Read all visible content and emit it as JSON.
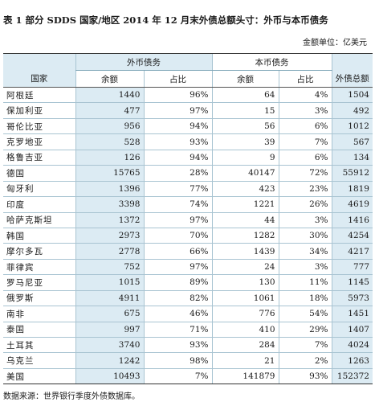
{
  "title": "表 1  部分 SDDS 国家/地区 2014 年 12 月末外债总额头寸：外币与本币债务",
  "unit": "金额单位：亿美元",
  "headers": {
    "country": "国家",
    "foreign": "外币债务",
    "local": "本币债务",
    "total": "外债总额",
    "amount": "余额",
    "share": "占比"
  },
  "rows": [
    {
      "name": "阿根廷",
      "f_amt": "1440",
      "f_pct": "96%",
      "l_amt": "64",
      "l_pct": "4%",
      "total": "1504"
    },
    {
      "name": "保加利亚",
      "f_amt": "477",
      "f_pct": "97%",
      "l_amt": "15",
      "l_pct": "3%",
      "total": "492"
    },
    {
      "name": "哥伦比亚",
      "f_amt": "956",
      "f_pct": "94%",
      "l_amt": "56",
      "l_pct": "6%",
      "total": "1012"
    },
    {
      "name": "克罗地亚",
      "f_amt": "528",
      "f_pct": "93%",
      "l_amt": "39",
      "l_pct": "7%",
      "total": "567"
    },
    {
      "name": "格鲁吉亚",
      "f_amt": "126",
      "f_pct": "94%",
      "l_amt": "9",
      "l_pct": "6%",
      "total": "134"
    },
    {
      "name": "德国",
      "f_amt": "15765",
      "f_pct": "28%",
      "l_amt": "40147",
      "l_pct": "72%",
      "total": "55912"
    },
    {
      "name": "匈牙利",
      "f_amt": "1396",
      "f_pct": "77%",
      "l_amt": "423",
      "l_pct": "23%",
      "total": "1819"
    },
    {
      "name": "印度",
      "f_amt": "3398",
      "f_pct": "74%",
      "l_amt": "1221",
      "l_pct": "26%",
      "total": "4619"
    },
    {
      "name": "哈萨克斯坦",
      "f_amt": "1372",
      "f_pct": "97%",
      "l_amt": "44",
      "l_pct": "3%",
      "total": "1416"
    },
    {
      "name": "韩国",
      "f_amt": "2973",
      "f_pct": "70%",
      "l_amt": "1282",
      "l_pct": "30%",
      "total": "4254"
    },
    {
      "name": "摩尔多瓦",
      "f_amt": "2778",
      "f_pct": "66%",
      "l_amt": "1439",
      "l_pct": "34%",
      "total": "4217"
    },
    {
      "name": "菲律宾",
      "f_amt": "752",
      "f_pct": "97%",
      "l_amt": "24",
      "l_pct": "3%",
      "total": "777"
    },
    {
      "name": "罗马尼亚",
      "f_amt": "1015",
      "f_pct": "89%",
      "l_amt": "130",
      "l_pct": "11%",
      "total": "1145"
    },
    {
      "name": "俄罗斯",
      "f_amt": "4911",
      "f_pct": "82%",
      "l_amt": "1061",
      "l_pct": "18%",
      "total": "5973"
    },
    {
      "name": "南非",
      "f_amt": "675",
      "f_pct": "46%",
      "l_amt": "776",
      "l_pct": "54%",
      "total": "1451"
    },
    {
      "name": "泰国",
      "f_amt": "997",
      "f_pct": "71%",
      "l_amt": "410",
      "l_pct": "29%",
      "total": "1407"
    },
    {
      "name": "土耳其",
      "f_amt": "3740",
      "f_pct": "93%",
      "l_amt": "284",
      "l_pct": "7%",
      "total": "4024"
    },
    {
      "name": "乌克兰",
      "f_amt": "1242",
      "f_pct": "98%",
      "l_amt": "21",
      "l_pct": "2%",
      "total": "1263"
    },
    {
      "name": "美国",
      "f_amt": "10493",
      "f_pct": "7%",
      "l_amt": "141879",
      "l_pct": "93%",
      "total": "152372"
    }
  ],
  "source": "数据来源：世界银行季度外债数据库。"
}
